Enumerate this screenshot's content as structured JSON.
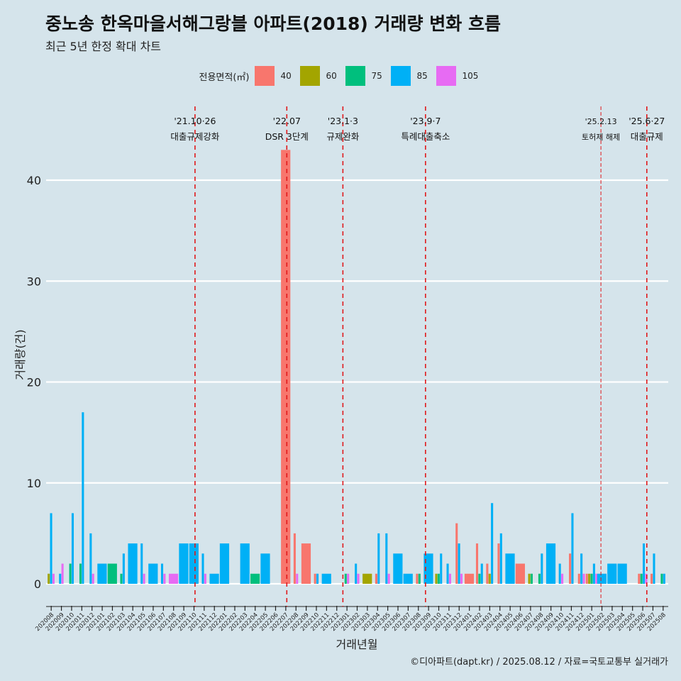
{
  "title": "중노송 한옥마을서해그랑블 아파트(2018) 거래량 변화 흐름",
  "subtitle": "최근 5년 한정 확대 차트",
  "caption": "©디아파트(dapt.kr) / 2025.08.12 / 자료=국토교통부 실거래가",
  "colors": {
    "background": "#d5e4eb",
    "grid": "#ffffff",
    "event_line": "#e0191b",
    "40": "#f8766d",
    "60": "#a3a500",
    "75": "#00bf7d",
    "85": "#00b0f6",
    "105": "#e76bf3"
  },
  "chart_data": {
    "type": "bar",
    "xlabel": "거래년월",
    "ylabel": "거래량(건)",
    "ylim": [
      0,
      44
    ],
    "y_ticks": [
      0,
      10,
      20,
      30,
      40
    ],
    "legend": {
      "title": "전용면적(㎡)",
      "placement": "top",
      "entries": [
        "40",
        "60",
        "75",
        "85",
        "105"
      ]
    },
    "months": [
      "202008",
      "202009",
      "202010",
      "202011",
      "202012",
      "202101",
      "202102",
      "202103",
      "202104",
      "202105",
      "202106",
      "202107",
      "202108",
      "202109",
      "202110",
      "202111",
      "202112",
      "202201",
      "202202",
      "202203",
      "202204",
      "202205",
      "202206",
      "202207",
      "202208",
      "202209",
      "202210",
      "202211",
      "202212",
      "202301",
      "202302",
      "202303",
      "202304",
      "202305",
      "202306",
      "202307",
      "202308",
      "202309",
      "202310",
      "202311",
      "202312",
      "202401",
      "202402",
      "202403",
      "202404",
      "202405",
      "202406",
      "202407",
      "202408",
      "202409",
      "202410",
      "202411",
      "202412",
      "202501",
      "202502",
      "202503",
      "202504",
      "202505",
      "202506",
      "202507",
      "202508"
    ],
    "series": [
      {
        "name": "40",
        "values": [
          0,
          0,
          0,
          0,
          0,
          0,
          0,
          0,
          0,
          0,
          0,
          0,
          0,
          0,
          0,
          0,
          0,
          0,
          0,
          0,
          0,
          0,
          0,
          43,
          5,
          4,
          1,
          0,
          0,
          0,
          0,
          0,
          1,
          0,
          0,
          0,
          1,
          0,
          0,
          0,
          6,
          1,
          4,
          2,
          4,
          0,
          2,
          0,
          0,
          0,
          0,
          3,
          1,
          1,
          0,
          0,
          0,
          0,
          1,
          1,
          0
        ]
      },
      {
        "name": "60",
        "values": [
          1,
          0,
          0,
          0,
          0,
          0,
          0,
          0,
          0,
          0,
          0,
          0,
          0,
          0,
          0,
          0,
          0,
          0,
          0,
          0,
          0,
          0,
          0,
          0,
          0,
          0,
          0,
          0,
          0,
          0,
          0,
          1,
          0,
          0,
          0,
          0,
          0,
          0,
          1,
          0,
          0,
          0,
          0,
          1,
          0,
          0,
          0,
          1,
          0,
          0,
          0,
          0,
          0,
          1,
          0,
          0,
          0,
          0,
          0,
          0,
          0
        ]
      },
      {
        "name": "75",
        "values": [
          0,
          0,
          2,
          2,
          0,
          0,
          2,
          1,
          0,
          0,
          0,
          0,
          0,
          0,
          0,
          0,
          0,
          0,
          0,
          0,
          1,
          0,
          0,
          0,
          0,
          0,
          0,
          0,
          0,
          1,
          0,
          0,
          0,
          0,
          0,
          0,
          1,
          0,
          1,
          0,
          0,
          0,
          1,
          0,
          0,
          0,
          0,
          1,
          1,
          0,
          0,
          0,
          0,
          1,
          0,
          0,
          0,
          0,
          1,
          0,
          1
        ]
      },
      {
        "name": "85",
        "values": [
          7,
          1,
          7,
          17,
          5,
          2,
          0,
          3,
          4,
          4,
          2,
          2,
          0,
          4,
          4,
          3,
          1,
          4,
          0,
          4,
          0,
          3,
          0,
          0,
          0,
          0,
          1,
          1,
          0,
          0,
          2,
          0,
          5,
          5,
          3,
          1,
          0,
          3,
          3,
          2,
          4,
          0,
          2,
          8,
          5,
          3,
          0,
          0,
          3,
          4,
          2,
          7,
          3,
          2,
          1,
          2,
          2,
          0,
          4,
          3,
          1
        ]
      },
      {
        "name": "105",
        "values": [
          1,
          2,
          0,
          0,
          1,
          0,
          0,
          0,
          0,
          1,
          0,
          1,
          1,
          0,
          0,
          1,
          0,
          0,
          0,
          0,
          0,
          0,
          0,
          0,
          1,
          0,
          0,
          0,
          0,
          1,
          1,
          0,
          0,
          1,
          0,
          0,
          0,
          0,
          0,
          1,
          1,
          0,
          0,
          0,
          0,
          0,
          0,
          0,
          0,
          0,
          1,
          0,
          1,
          1,
          0,
          0,
          0,
          0,
          1,
          0,
          0
        ]
      }
    ],
    "events": [
      {
        "month": "202110",
        "offset": 0.6,
        "date": "'21.10·26",
        "label": "대출규제강화",
        "style": "dashed"
      },
      {
        "month": "202207",
        "offset": 0.6,
        "date": "'22.07",
        "label": "DSR 3단계",
        "style": "dashed"
      },
      {
        "month": "202301",
        "offset": 0.1,
        "date": "'23.1·3",
        "label": "규제완화",
        "style": "dashed"
      },
      {
        "month": "202309",
        "offset": 0.2,
        "date": "'23.9·7",
        "label": "특례대출축소",
        "style": "dashed"
      },
      {
        "month": "202502",
        "offset": 0.4,
        "date": "'25.2.13",
        "label": "토허제 해제",
        "style": "thin"
      },
      {
        "month": "202506",
        "offset": 0.9,
        "date": "'25.6·27",
        "label": "대출규제",
        "style": "dashed"
      }
    ]
  }
}
